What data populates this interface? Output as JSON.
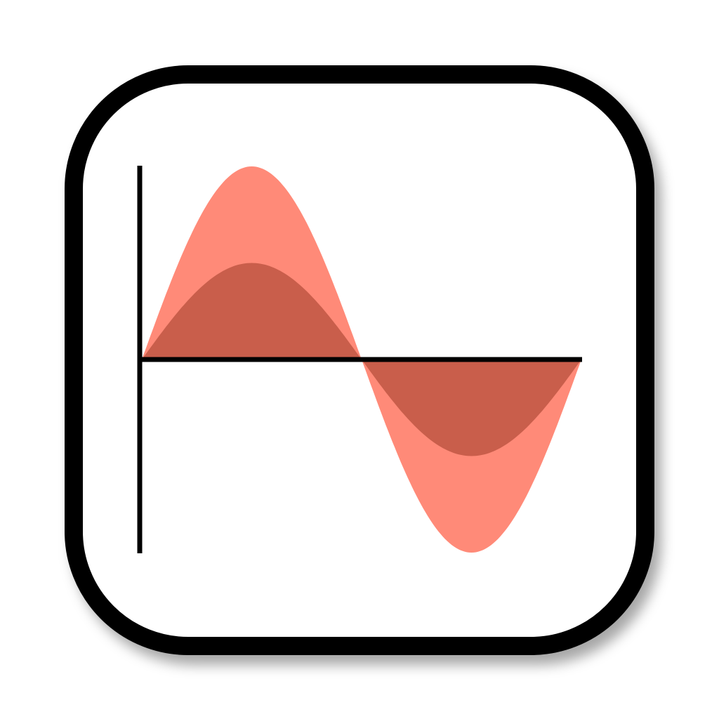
{
  "icon": {
    "name": "sine-wave-app-icon",
    "colors": {
      "frame": "#000000",
      "background": "#ffffff",
      "small_wave": "#7f7f7f",
      "large_wave": "#ff8a78",
      "overlap": "#c95e4b",
      "axes": "#000000"
    },
    "waves": [
      {
        "name": "small-wave",
        "relative_amplitude": 0.5,
        "periods": 1
      },
      {
        "name": "large-wave",
        "relative_amplitude": 1.0,
        "periods": 1
      }
    ]
  }
}
